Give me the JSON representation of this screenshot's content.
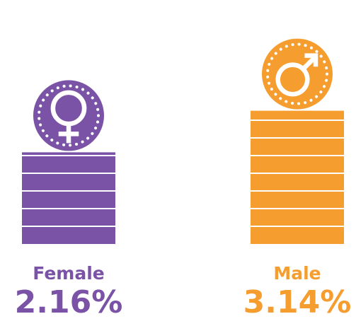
{
  "chart_data": {
    "type": "pictograph",
    "categories": [
      "Female",
      "Male"
    ],
    "values": [
      2.16,
      3.14
    ],
    "value_labels": [
      "2.16%",
      "3.14%"
    ],
    "colors": [
      "#7a52a6",
      "#f59d2f"
    ]
  }
}
